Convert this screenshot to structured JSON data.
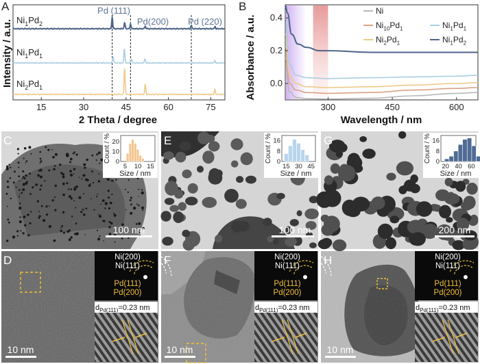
{
  "panel_letters": [
    "A",
    "B",
    "C",
    "D",
    "E",
    "F",
    "G",
    "H"
  ],
  "chart_data": [
    {
      "type": "line",
      "panel": "A",
      "xlabel": "2 Theta / degree",
      "ylabel": "Intensity / a.u.",
      "xlim": [
        5,
        80
      ],
      "xticks": [
        15,
        30,
        45,
        60,
        75
      ],
      "series_names": [
        "Ni1Pd2",
        "Ni1Pd1",
        "Ni2Pd1"
      ],
      "colors": [
        "#4c6488",
        "#a9cde2",
        "#f0c98a"
      ],
      "peaks": [
        {
          "series": "Ni1Pd2",
          "x": [
            40.1,
            44.5,
            46.6,
            51.8,
            68.1,
            76.5
          ],
          "h": [
            17,
            9,
            7,
            4,
            5,
            3
          ]
        },
        {
          "series": "Ni1Pd1",
          "x": [
            40.4,
            44.4,
            46.9,
            51.7,
            76.4
          ],
          "h": [
            10,
            22,
            6,
            6,
            3
          ]
        },
        {
          "series": "Ni2Pd1",
          "x": [
            44.5,
            51.8,
            76.4
          ],
          "h": [
            40,
            15,
            8
          ]
        }
      ],
      "annotations": [
        {
          "label": "Pd (111)",
          "x": 40.1
        },
        {
          "label": "Pd(200)",
          "x": 46.6
        },
        {
          "label": "Pd (220)",
          "x": 68.1
        }
      ]
    },
    {
      "type": "line",
      "panel": "B",
      "xlabel": "Wavelength / nm",
      "ylabel": "Absorbance / a.u.",
      "xlim": [
        200,
        650
      ],
      "ylim": [
        -0.1,
        0.48
      ],
      "xticks": [
        300,
        450,
        600
      ],
      "yticks": [
        0.0,
        0.2,
        0.4
      ],
      "series": [
        {
          "name": "Ni",
          "color": "#b8b8b8",
          "x": [
            200,
            210,
            225,
            250,
            300,
            400,
            500,
            600,
            650
          ],
          "y": [
            0.15,
            -0.05,
            -0.085,
            -0.092,
            -0.095,
            -0.09,
            -0.075,
            -0.06,
            -0.055
          ]
        },
        {
          "name": "Ni10Pd1",
          "color": "#d9a085",
          "x": [
            200,
            210,
            225,
            250,
            300,
            400,
            500,
            600,
            650
          ],
          "y": [
            0.22,
            0.0,
            -0.04,
            -0.055,
            -0.06,
            -0.055,
            -0.04,
            -0.03,
            -0.025
          ]
        },
        {
          "name": "Ni2Pd1",
          "color": "#f0c98a",
          "x": [
            200,
            210,
            225,
            250,
            300,
            400,
            500,
            600,
            650
          ],
          "y": [
            0.3,
            0.05,
            0.0,
            -0.02,
            -0.025,
            -0.02,
            -0.01,
            0.0,
            0.005
          ]
        },
        {
          "name": "Ni1Pd1",
          "color": "#a9cde2",
          "x": [
            200,
            210,
            225,
            250,
            300,
            400,
            500,
            600,
            650
          ],
          "y": [
            0.4,
            0.12,
            0.05,
            0.035,
            0.03,
            0.035,
            0.04,
            0.045,
            0.05
          ]
        },
        {
          "name": "Ni1Pd2",
          "color": "#4c6488",
          "x": [
            200,
            205,
            215,
            230,
            250,
            280,
            300,
            400,
            500,
            600,
            650
          ],
          "y": [
            0.48,
            0.43,
            0.3,
            0.24,
            0.22,
            0.2,
            0.2,
            0.19,
            0.19,
            0.19,
            0.19
          ]
        }
      ],
      "legend_order": [
        "Ni",
        "Ni1Pd1",
        "Ni10Pd1",
        "Ni1Pd2",
        "Ni2Pd1"
      ],
      "shaded_regions": [
        {
          "x0": 200,
          "x1": 245,
          "color": "#c9a6f0"
        },
        {
          "x0": 265,
          "x1": 300,
          "color": "#e58a8a"
        }
      ]
    },
    {
      "type": "bar",
      "panel": "C",
      "xlabel": "Size / nm",
      "ylabel": "Count / %",
      "xticks": [
        5,
        10,
        15
      ],
      "yticks": [
        0,
        10,
        20
      ],
      "ymax": 26,
      "bins": [
        6,
        7,
        8,
        9,
        10,
        11,
        12
      ],
      "values": [
        8,
        18,
        22,
        18,
        12,
        6,
        3
      ],
      "color": "#f2c58e"
    },
    {
      "type": "bar",
      "panel": "E",
      "xlabel": "Size / nm",
      "ylabel": "Count / %",
      "xticks": [
        15,
        30,
        45
      ],
      "yticks": [
        0,
        8,
        16
      ],
      "ymax": 20,
      "bins": [
        15,
        20,
        25,
        30,
        35,
        40
      ],
      "values": [
        6,
        12,
        17,
        14,
        9,
        5
      ],
      "color": "#b9d5ec"
    },
    {
      "type": "bar",
      "panel": "G",
      "xlabel": "Size / nm",
      "ylabel": "Count / %",
      "xticks": [
        20,
        40,
        60
      ],
      "yticks": [
        0,
        8,
        16
      ],
      "ymax": 20,
      "bins": [
        22,
        29,
        36,
        43,
        50,
        57,
        64,
        71
      ],
      "values": [
        2,
        4,
        8,
        13,
        17,
        18,
        12,
        4
      ],
      "color": "#506b94"
    }
  ],
  "scale_bars": [
    "100 nm",
    "100 nm",
    "200 nm",
    "10 nm",
    "10 nm",
    "10 nm"
  ],
  "saed_labels": [
    "Ni(200)",
    "Ni(111)",
    "Pd(111)",
    "Pd(200)"
  ],
  "d_spacing": {
    "prefix": "d",
    "sub": "Pd(111)",
    "value": "=0.23 nm"
  }
}
